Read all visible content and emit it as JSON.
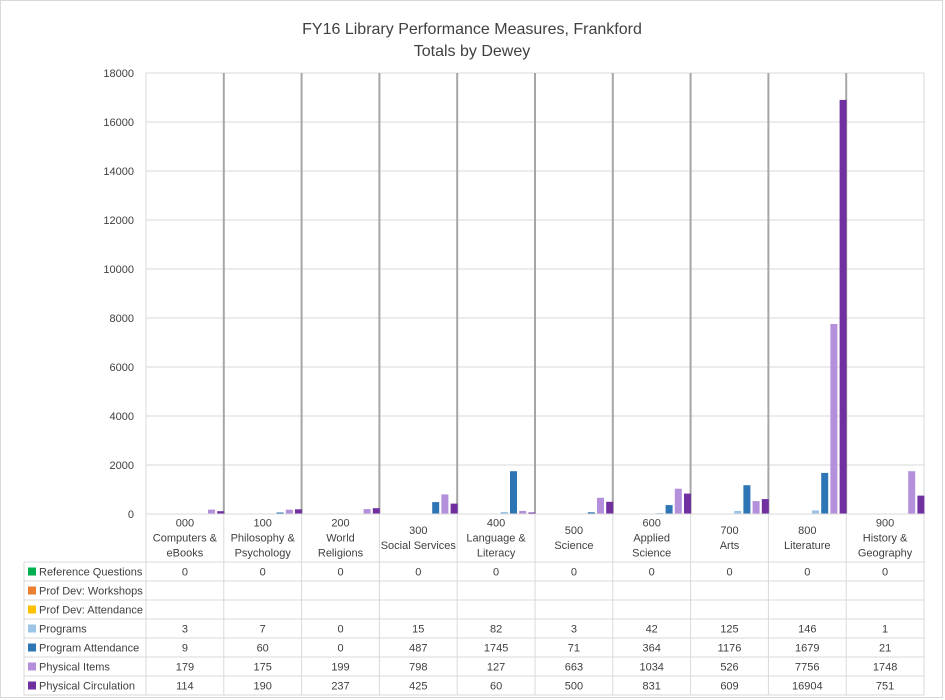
{
  "chart_data": {
    "type": "bar",
    "title": [
      "FY16 Library Performance Measures, Frankford",
      "Totals by Dewey"
    ],
    "ylim": [
      0,
      18000
    ],
    "yticks": [
      0,
      2000,
      4000,
      6000,
      8000,
      10000,
      12000,
      14000,
      16000,
      18000
    ],
    "grid": true,
    "legend_placement": "data-table-left",
    "categories": [
      [
        "000",
        "Computers &",
        "eBooks"
      ],
      [
        "100",
        "Philosophy &",
        "Psychology"
      ],
      [
        "200",
        "World",
        "Religions"
      ],
      [
        "300",
        "Social Services"
      ],
      [
        "400",
        "Language &",
        "Literacy"
      ],
      [
        "500",
        "Science"
      ],
      [
        "600",
        "Applied",
        "Science"
      ],
      [
        "700",
        "Arts"
      ],
      [
        "800",
        "Literature"
      ],
      [
        "900",
        "History &",
        "Geography"
      ]
    ],
    "series": [
      {
        "name": "Reference Questions",
        "color": "#00b050",
        "values": [
          0,
          0,
          0,
          0,
          0,
          0,
          0,
          0,
          0,
          0
        ]
      },
      {
        "name": "Prof Dev: Workshops",
        "color": "#ed7d31",
        "values": [
          null,
          null,
          null,
          null,
          null,
          null,
          null,
          null,
          null,
          null
        ]
      },
      {
        "name": "Prof Dev: Attendance",
        "color": "#ffc000",
        "values": [
          null,
          null,
          null,
          null,
          null,
          null,
          null,
          null,
          null,
          null
        ]
      },
      {
        "name": "Programs",
        "color": "#9dc3e6",
        "values": [
          3,
          7,
          0,
          15,
          82,
          3,
          42,
          125,
          146,
          1
        ]
      },
      {
        "name": "Program Attendance",
        "color": "#2e75b6",
        "values": [
          9,
          60,
          0,
          487,
          1745,
          71,
          364,
          1176,
          1679,
          21
        ]
      },
      {
        "name": "Physical Items",
        "color": "#b48fdc",
        "values": [
          179,
          175,
          199,
          798,
          127,
          663,
          1034,
          526,
          7756,
          1748
        ]
      },
      {
        "name": "Physical Circulation",
        "color": "#7030a0",
        "values": [
          114,
          190,
          237,
          425,
          60,
          500,
          831,
          609,
          16904,
          751
        ]
      }
    ]
  }
}
